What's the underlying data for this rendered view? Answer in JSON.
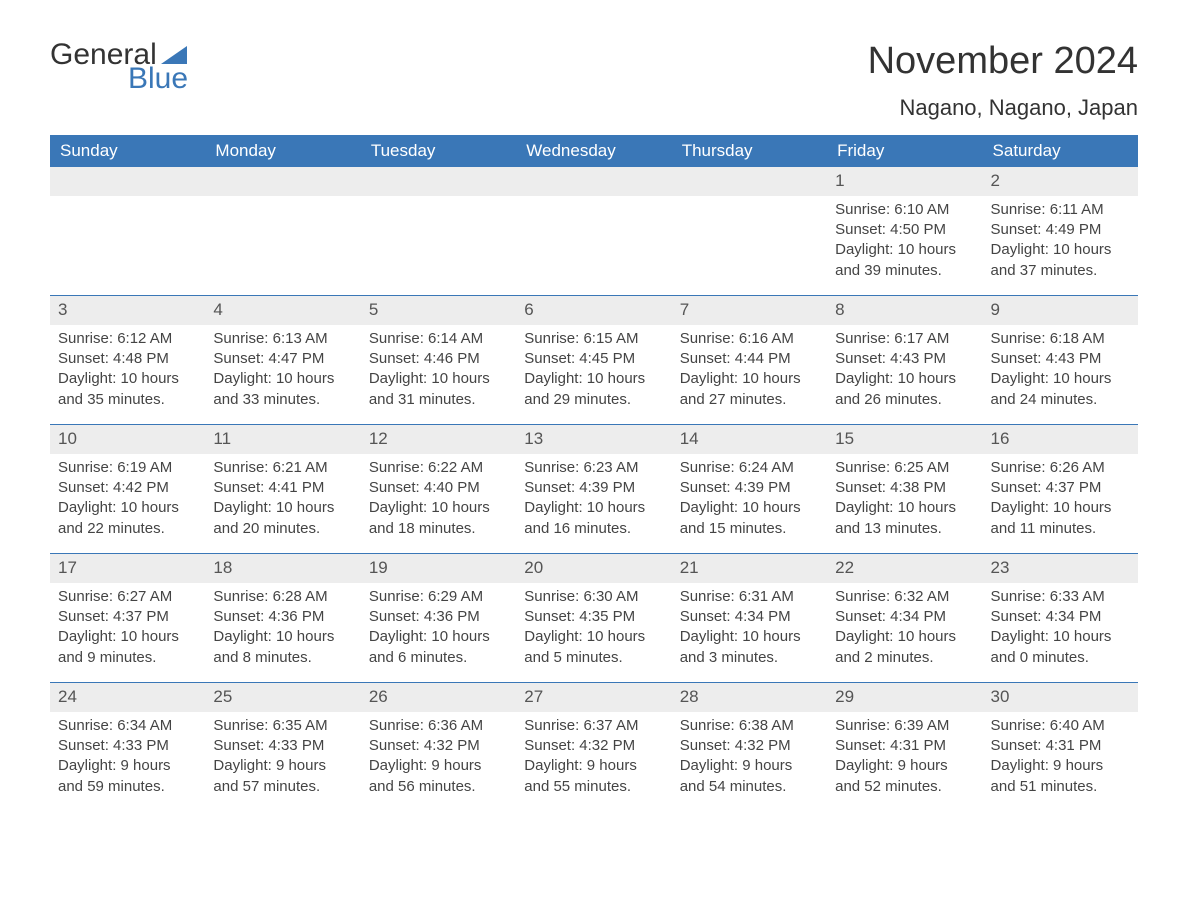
{
  "logo": {
    "word1": "General",
    "word2": "Blue"
  },
  "title": "November 2024",
  "location": "Nagano, Nagano, Japan",
  "colors": {
    "header_bg": "#3a77b7",
    "header_text": "#ffffff",
    "daynum_bg": "#ededed",
    "row_border": "#3a77b7",
    "text": "#444444",
    "title_text": "#333333"
  },
  "days_of_week": [
    "Sunday",
    "Monday",
    "Tuesday",
    "Wednesday",
    "Thursday",
    "Friday",
    "Saturday"
  ],
  "weeks": [
    [
      null,
      null,
      null,
      null,
      null,
      {
        "n": "1",
        "sunrise": "Sunrise: 6:10 AM",
        "sunset": "Sunset: 4:50 PM",
        "day1": "Daylight: 10 hours",
        "day2": "and 39 minutes."
      },
      {
        "n": "2",
        "sunrise": "Sunrise: 6:11 AM",
        "sunset": "Sunset: 4:49 PM",
        "day1": "Daylight: 10 hours",
        "day2": "and 37 minutes."
      }
    ],
    [
      {
        "n": "3",
        "sunrise": "Sunrise: 6:12 AM",
        "sunset": "Sunset: 4:48 PM",
        "day1": "Daylight: 10 hours",
        "day2": "and 35 minutes."
      },
      {
        "n": "4",
        "sunrise": "Sunrise: 6:13 AM",
        "sunset": "Sunset: 4:47 PM",
        "day1": "Daylight: 10 hours",
        "day2": "and 33 minutes."
      },
      {
        "n": "5",
        "sunrise": "Sunrise: 6:14 AM",
        "sunset": "Sunset: 4:46 PM",
        "day1": "Daylight: 10 hours",
        "day2": "and 31 minutes."
      },
      {
        "n": "6",
        "sunrise": "Sunrise: 6:15 AM",
        "sunset": "Sunset: 4:45 PM",
        "day1": "Daylight: 10 hours",
        "day2": "and 29 minutes."
      },
      {
        "n": "7",
        "sunrise": "Sunrise: 6:16 AM",
        "sunset": "Sunset: 4:44 PM",
        "day1": "Daylight: 10 hours",
        "day2": "and 27 minutes."
      },
      {
        "n": "8",
        "sunrise": "Sunrise: 6:17 AM",
        "sunset": "Sunset: 4:43 PM",
        "day1": "Daylight: 10 hours",
        "day2": "and 26 minutes."
      },
      {
        "n": "9",
        "sunrise": "Sunrise: 6:18 AM",
        "sunset": "Sunset: 4:43 PM",
        "day1": "Daylight: 10 hours",
        "day2": "and 24 minutes."
      }
    ],
    [
      {
        "n": "10",
        "sunrise": "Sunrise: 6:19 AM",
        "sunset": "Sunset: 4:42 PM",
        "day1": "Daylight: 10 hours",
        "day2": "and 22 minutes."
      },
      {
        "n": "11",
        "sunrise": "Sunrise: 6:21 AM",
        "sunset": "Sunset: 4:41 PM",
        "day1": "Daylight: 10 hours",
        "day2": "and 20 minutes."
      },
      {
        "n": "12",
        "sunrise": "Sunrise: 6:22 AM",
        "sunset": "Sunset: 4:40 PM",
        "day1": "Daylight: 10 hours",
        "day2": "and 18 minutes."
      },
      {
        "n": "13",
        "sunrise": "Sunrise: 6:23 AM",
        "sunset": "Sunset: 4:39 PM",
        "day1": "Daylight: 10 hours",
        "day2": "and 16 minutes."
      },
      {
        "n": "14",
        "sunrise": "Sunrise: 6:24 AM",
        "sunset": "Sunset: 4:39 PM",
        "day1": "Daylight: 10 hours",
        "day2": "and 15 minutes."
      },
      {
        "n": "15",
        "sunrise": "Sunrise: 6:25 AM",
        "sunset": "Sunset: 4:38 PM",
        "day1": "Daylight: 10 hours",
        "day2": "and 13 minutes."
      },
      {
        "n": "16",
        "sunrise": "Sunrise: 6:26 AM",
        "sunset": "Sunset: 4:37 PM",
        "day1": "Daylight: 10 hours",
        "day2": "and 11 minutes."
      }
    ],
    [
      {
        "n": "17",
        "sunrise": "Sunrise: 6:27 AM",
        "sunset": "Sunset: 4:37 PM",
        "day1": "Daylight: 10 hours",
        "day2": "and 9 minutes."
      },
      {
        "n": "18",
        "sunrise": "Sunrise: 6:28 AM",
        "sunset": "Sunset: 4:36 PM",
        "day1": "Daylight: 10 hours",
        "day2": "and 8 minutes."
      },
      {
        "n": "19",
        "sunrise": "Sunrise: 6:29 AM",
        "sunset": "Sunset: 4:36 PM",
        "day1": "Daylight: 10 hours",
        "day2": "and 6 minutes."
      },
      {
        "n": "20",
        "sunrise": "Sunrise: 6:30 AM",
        "sunset": "Sunset: 4:35 PM",
        "day1": "Daylight: 10 hours",
        "day2": "and 5 minutes."
      },
      {
        "n": "21",
        "sunrise": "Sunrise: 6:31 AM",
        "sunset": "Sunset: 4:34 PM",
        "day1": "Daylight: 10 hours",
        "day2": "and 3 minutes."
      },
      {
        "n": "22",
        "sunrise": "Sunrise: 6:32 AM",
        "sunset": "Sunset: 4:34 PM",
        "day1": "Daylight: 10 hours",
        "day2": "and 2 minutes."
      },
      {
        "n": "23",
        "sunrise": "Sunrise: 6:33 AM",
        "sunset": "Sunset: 4:34 PM",
        "day1": "Daylight: 10 hours",
        "day2": "and 0 minutes."
      }
    ],
    [
      {
        "n": "24",
        "sunrise": "Sunrise: 6:34 AM",
        "sunset": "Sunset: 4:33 PM",
        "day1": "Daylight: 9 hours",
        "day2": "and 59 minutes."
      },
      {
        "n": "25",
        "sunrise": "Sunrise: 6:35 AM",
        "sunset": "Sunset: 4:33 PM",
        "day1": "Daylight: 9 hours",
        "day2": "and 57 minutes."
      },
      {
        "n": "26",
        "sunrise": "Sunrise: 6:36 AM",
        "sunset": "Sunset: 4:32 PM",
        "day1": "Daylight: 9 hours",
        "day2": "and 56 minutes."
      },
      {
        "n": "27",
        "sunrise": "Sunrise: 6:37 AM",
        "sunset": "Sunset: 4:32 PM",
        "day1": "Daylight: 9 hours",
        "day2": "and 55 minutes."
      },
      {
        "n": "28",
        "sunrise": "Sunrise: 6:38 AM",
        "sunset": "Sunset: 4:32 PM",
        "day1": "Daylight: 9 hours",
        "day2": "and 54 minutes."
      },
      {
        "n": "29",
        "sunrise": "Sunrise: 6:39 AM",
        "sunset": "Sunset: 4:31 PM",
        "day1": "Daylight: 9 hours",
        "day2": "and 52 minutes."
      },
      {
        "n": "30",
        "sunrise": "Sunrise: 6:40 AM",
        "sunset": "Sunset: 4:31 PM",
        "day1": "Daylight: 9 hours",
        "day2": "and 51 minutes."
      }
    ]
  ]
}
